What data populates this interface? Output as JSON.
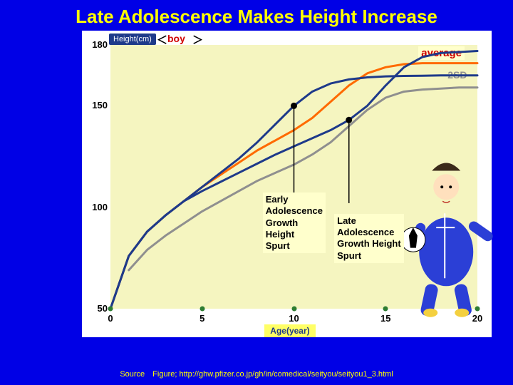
{
  "title": "Late Adolescence Makes Height Increase",
  "chart": {
    "type": "line",
    "x_axis": {
      "title": "Age(year)",
      "lim": [
        0,
        20
      ],
      "ticks": [
        0,
        5,
        10,
        15,
        20
      ],
      "tick_color": "#2e7d32",
      "label_color": "#000000"
    },
    "y_axis": {
      "title": "Height(cm)",
      "lim": [
        50,
        180
      ],
      "ticks": [
        50,
        100,
        150,
        180
      ],
      "label_color": "#000000",
      "title_bg": "#1e3a8a",
      "title_fg": "#ffffff"
    },
    "background": "#f5f5c0",
    "series": {
      "average_orange": {
        "color": "#ff6a00",
        "width": 3,
        "points": [
          [
            0,
            50
          ],
          [
            1,
            76
          ],
          [
            2,
            88
          ],
          [
            3,
            96
          ],
          [
            4,
            103
          ],
          [
            5,
            110
          ],
          [
            6,
            116
          ],
          [
            7,
            122
          ],
          [
            8,
            128
          ],
          [
            9,
            133
          ],
          [
            10,
            138
          ],
          [
            11,
            144
          ],
          [
            12,
            152
          ],
          [
            13,
            160
          ],
          [
            14,
            166
          ],
          [
            15,
            169
          ],
          [
            16,
            170.5
          ],
          [
            17,
            171
          ],
          [
            18,
            171
          ],
          [
            19,
            171
          ],
          [
            20,
            171
          ]
        ]
      },
      "minus2sd_gray": {
        "color": "#8f8f8f",
        "width": 3,
        "points": [
          [
            1,
            69
          ],
          [
            2,
            79
          ],
          [
            3,
            86
          ],
          [
            4,
            92
          ],
          [
            5,
            98
          ],
          [
            6,
            103
          ],
          [
            7,
            108
          ],
          [
            8,
            113
          ],
          [
            9,
            117
          ],
          [
            10,
            121
          ],
          [
            11,
            126
          ],
          [
            12,
            132
          ],
          [
            13,
            140
          ],
          [
            14,
            148
          ],
          [
            15,
            154
          ],
          [
            16,
            157
          ],
          [
            17,
            158
          ],
          [
            18,
            158.5
          ],
          [
            19,
            159
          ],
          [
            20,
            159
          ]
        ]
      },
      "early_blue": {
        "color": "#1e3a8a",
        "width": 3,
        "points": [
          [
            0,
            50
          ],
          [
            1,
            76
          ],
          [
            2,
            88
          ],
          [
            3,
            96
          ],
          [
            4,
            103
          ],
          [
            5,
            110
          ],
          [
            6,
            117
          ],
          [
            7,
            124
          ],
          [
            8,
            132
          ],
          [
            9,
            141
          ],
          [
            10,
            150
          ],
          [
            11,
            157
          ],
          [
            12,
            161
          ],
          [
            13,
            163
          ],
          [
            14,
            164
          ],
          [
            15,
            164.5
          ],
          [
            16,
            164.7
          ],
          [
            17,
            164.8
          ],
          [
            18,
            165
          ],
          [
            19,
            165
          ],
          [
            20,
            165
          ]
        ]
      },
      "late_blue": {
        "color": "#1e3a8a",
        "width": 3,
        "points": [
          [
            0,
            50
          ],
          [
            1,
            76
          ],
          [
            2,
            88
          ],
          [
            3,
            96
          ],
          [
            4,
            103
          ],
          [
            5,
            108
          ],
          [
            6,
            112.5
          ],
          [
            7,
            117
          ],
          [
            8,
            121.5
          ],
          [
            9,
            126
          ],
          [
            10,
            130
          ],
          [
            11,
            134
          ],
          [
            12,
            138
          ],
          [
            13,
            143
          ],
          [
            14,
            150
          ],
          [
            15,
            160
          ],
          [
            16,
            169
          ],
          [
            17,
            174
          ],
          [
            18,
            176
          ],
          [
            19,
            176.5
          ],
          [
            20,
            177
          ]
        ]
      }
    },
    "vert_markers": [
      {
        "x": 10,
        "from_series": "early_blue",
        "color": "#000000"
      },
      {
        "x": 13,
        "from_series": "late_blue",
        "color": "#000000"
      }
    ],
    "labels": {
      "boy": "boy",
      "average": "average",
      "minus2sd": "-2SD",
      "early_box": "Early\nAdolescence\nGrowth\nHeight\nSpurt",
      "late_box": "Late\nAdolescence\nGrowth Height\nSpurt"
    }
  },
  "source": "Source　Figure; http://ghw.pfizer.co.jp/gh/in/comedical/seityou/seityou1_3.html"
}
